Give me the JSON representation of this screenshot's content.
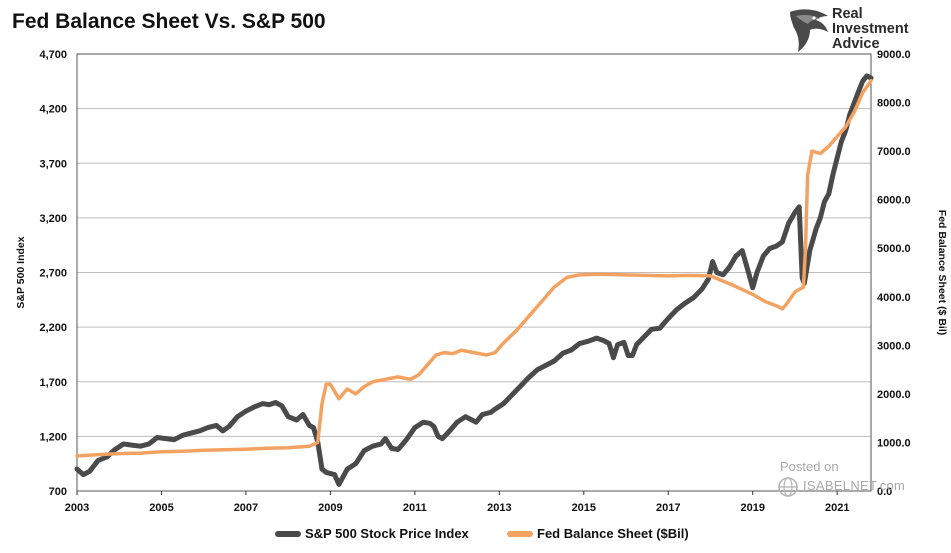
{
  "title": "Fed Balance Sheet Vs. S&P 500",
  "logo": {
    "line1": "Real",
    "line2": "Investment",
    "line3": "Advice",
    "icon": "eagle-head-icon"
  },
  "watermark": {
    "posted": "Posted on",
    "site": "ISABELNET.com",
    "icon": "globe-icon"
  },
  "colors": {
    "sp500": "#4a4a4a",
    "fed": "#f4a261",
    "grid": "#bdbdbd",
    "axis": "#333333"
  },
  "chart_data": {
    "type": "line",
    "title": "Fed Balance Sheet Vs. S&P 500",
    "xlabel": "",
    "ylabel": "S&P 500 Index",
    "y2label": "Fed Balance Sheet ($ Bil)",
    "xlim": [
      2003,
      2021.8
    ],
    "ylim": [
      700,
      4700
    ],
    "y2lim": [
      0,
      9000
    ],
    "xticks": [
      "2003",
      "2005",
      "2007",
      "2009",
      "2011",
      "2013",
      "2015",
      "2017",
      "2019",
      "2021"
    ],
    "xtick_values": [
      2003,
      2005,
      2007,
      2009,
      2011,
      2013,
      2015,
      2017,
      2019,
      2021
    ],
    "yticks": [
      "700",
      "1,200",
      "1,700",
      "2,200",
      "2,700",
      "3,200",
      "3,700",
      "4,200",
      "4,700"
    ],
    "ytick_values": [
      700,
      1200,
      1700,
      2200,
      2700,
      3200,
      3700,
      4200,
      4700
    ],
    "y2ticks": [
      "0.0",
      "1000.0",
      "2000.0",
      "3000.0",
      "4000.0",
      "5000.0",
      "6000.0",
      "7000.0",
      "8000.0",
      "9000.0"
    ],
    "y2tick_values": [
      0,
      1000,
      2000,
      3000,
      4000,
      5000,
      6000,
      7000,
      8000,
      9000
    ],
    "grid": true,
    "legend_position": "bottom-center",
    "series": [
      {
        "name": "S&P 500 Stock Price Index",
        "axis": "left",
        "x": [
          2003.0,
          2003.15,
          2003.3,
          2003.5,
          2003.7,
          2003.9,
          2004.1,
          2004.3,
          2004.5,
          2004.7,
          2004.9,
          2005.1,
          2005.3,
          2005.5,
          2005.7,
          2005.9,
          2006.1,
          2006.3,
          2006.45,
          2006.6,
          2006.8,
          2007.0,
          2007.2,
          2007.4,
          2007.55,
          2007.7,
          2007.85,
          2008.0,
          2008.2,
          2008.35,
          2008.5,
          2008.6,
          2008.7,
          2008.8,
          2008.9,
          2009.1,
          2009.2,
          2009.4,
          2009.6,
          2009.8,
          2010.0,
          2010.2,
          2010.3,
          2010.45,
          2010.6,
          2010.8,
          2011.0,
          2011.2,
          2011.35,
          2011.45,
          2011.55,
          2011.65,
          2011.8,
          2012.0,
          2012.2,
          2012.35,
          2012.45,
          2012.6,
          2012.8,
          2012.9,
          2013.1,
          2013.3,
          2013.5,
          2013.7,
          2013.9,
          2014.1,
          2014.3,
          2014.5,
          2014.7,
          2014.9,
          2015.1,
          2015.3,
          2015.45,
          2015.6,
          2015.7,
          2015.8,
          2015.95,
          2016.05,
          2016.15,
          2016.25,
          2016.4,
          2016.6,
          2016.8,
          2017.0,
          2017.2,
          2017.4,
          2017.6,
          2017.8,
          2017.95,
          2018.05,
          2018.15,
          2018.3,
          2018.45,
          2018.6,
          2018.75,
          2018.9,
          2019.0,
          2019.1,
          2019.25,
          2019.4,
          2019.55,
          2019.7,
          2019.85,
          2020.0,
          2020.1,
          2020.17,
          2020.22,
          2020.35,
          2020.5,
          2020.6,
          2020.7,
          2020.8,
          2020.9,
          2021.0,
          2021.1,
          2021.2,
          2021.3,
          2021.4,
          2021.5,
          2021.6,
          2021.7,
          2021.8
        ],
        "values": [
          900,
          850,
          880,
          980,
          1010,
          1080,
          1130,
          1120,
          1110,
          1130,
          1190,
          1180,
          1170,
          1210,
          1230,
          1250,
          1280,
          1300,
          1250,
          1290,
          1380,
          1430,
          1470,
          1500,
          1490,
          1510,
          1480,
          1380,
          1350,
          1400,
          1300,
          1280,
          1150,
          900,
          870,
          850,
          760,
          900,
          950,
          1070,
          1110,
          1130,
          1180,
          1090,
          1080,
          1170,
          1280,
          1330,
          1320,
          1290,
          1200,
          1180,
          1240,
          1330,
          1380,
          1350,
          1330,
          1400,
          1420,
          1450,
          1500,
          1580,
          1660,
          1740,
          1810,
          1850,
          1890,
          1960,
          1990,
          2050,
          2070,
          2100,
          2080,
          2050,
          1920,
          2040,
          2060,
          1940,
          1940,
          2040,
          2100,
          2180,
          2190,
          2280,
          2360,
          2420,
          2470,
          2550,
          2640,
          2800,
          2700,
          2680,
          2750,
          2850,
          2900,
          2700,
          2560,
          2700,
          2850,
          2920,
          2940,
          2980,
          3150,
          3250,
          3300,
          2650,
          2600,
          2900,
          3100,
          3200,
          3350,
          3420,
          3600,
          3750,
          3900,
          4000,
          4150,
          4250,
          4350,
          4450,
          4500,
          4480
        ]
      },
      {
        "name": "Fed Balance Sheet ($Bil)",
        "axis": "right",
        "x": [
          2003.0,
          2003.5,
          2004.0,
          2004.5,
          2005.0,
          2005.5,
          2006.0,
          2006.5,
          2007.0,
          2007.5,
          2008.0,
          2008.5,
          2008.7,
          2008.8,
          2008.9,
          2009.0,
          2009.2,
          2009.4,
          2009.6,
          2009.8,
          2010.0,
          2010.3,
          2010.6,
          2010.9,
          2011.1,
          2011.3,
          2011.5,
          2011.7,
          2011.9,
          2012.1,
          2012.4,
          2012.7,
          2012.9,
          2013.1,
          2013.4,
          2013.7,
          2014.0,
          2014.3,
          2014.6,
          2014.9,
          2015.2,
          2015.5,
          2016.0,
          2016.5,
          2017.0,
          2017.5,
          2018.0,
          2018.5,
          2019.0,
          2019.3,
          2019.6,
          2019.7,
          2019.8,
          2020.0,
          2020.1,
          2020.2,
          2020.25,
          2020.3,
          2020.4,
          2020.6,
          2020.8,
          2021.0,
          2021.2,
          2021.4,
          2021.6,
          2021.8
        ],
        "values": [
          720,
          750,
          770,
          780,
          810,
          820,
          840,
          850,
          860,
          880,
          890,
          920,
          1000,
          1800,
          2200,
          2200,
          1900,
          2100,
          2000,
          2150,
          2250,
          2300,
          2350,
          2300,
          2400,
          2600,
          2800,
          2850,
          2830,
          2900,
          2850,
          2800,
          2850,
          3050,
          3300,
          3600,
          3900,
          4200,
          4400,
          4450,
          4460,
          4460,
          4450,
          4440,
          4430,
          4440,
          4430,
          4250,
          4050,
          3900,
          3800,
          3750,
          3850,
          4100,
          4150,
          4200,
          5000,
          6500,
          7000,
          6950,
          7100,
          7300,
          7500,
          7800,
          8200,
          8450
        ]
      }
    ]
  }
}
